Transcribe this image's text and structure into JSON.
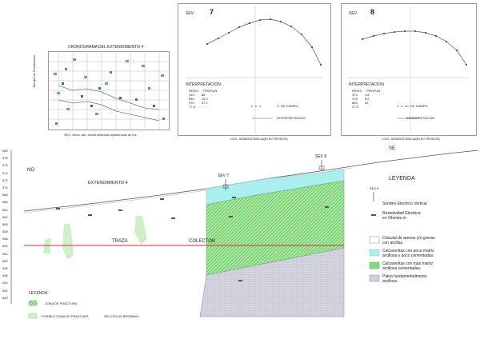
{
  "prospecting_chart": {
    "title": "CRONOGRAMA DEL EXTENDIMIENTO 4",
    "ylabel": "Tiempo de Penetracion",
    "footer": [
      "SEV. 15rev. ato. Inicial estimado apariencias de los"
    ]
  },
  "sev7": {
    "label": "SEV:",
    "number": "7",
    "interpretation_title": "INTERPRETACION",
    "table_header": [
      "RESIS.",
      "PROFUN."
    ],
    "table_rows": [
      [
        "152",
        "80"
      ],
      [
        "984",
        "10.3"
      ],
      [
        "970",
        "47.4"
      ],
      [
        "77.5",
        ""
      ]
    ],
    "legend_points": "C. DE CAMPO",
    "legend_line": "INTERPRETACION",
    "xlabel": "LOG. SEMIDISTANCIA(ELECTRODOS)"
  },
  "sev8": {
    "label": "SEV:",
    "number": "8",
    "interpretation_title": "INTERPRETACION",
    "table_header": [
      "RESIS.",
      "PROFUN."
    ],
    "table_rows": [
      [
        "373",
        "1.8"
      ],
      [
        "376",
        "5.2"
      ],
      [
        "869",
        "40"
      ],
      [
        "27.5",
        ""
      ]
    ],
    "legend_points": "C. DE CAMPO",
    "legend_line": "INTERPRETACION",
    "xlabel": "LOG. SEMIDISTANCIA(ELECTRODOS)"
  },
  "section": {
    "left_label": "NO",
    "right_label": "SE",
    "title": "EXTENDIMIENTO 4",
    "sev7_label": "SEV 7",
    "sev8_label": "SEV 8",
    "traza_label": "TRAZA",
    "colector_label": "COLECTOR",
    "elevation_ticks": [
      "580",
      "578",
      "576",
      "574",
      "572",
      "570",
      "568",
      "566",
      "564",
      "562",
      "560",
      "558",
      "556",
      "554",
      "552",
      "550",
      "548",
      "546",
      "544",
      "542",
      "540"
    ]
  },
  "legend_right": {
    "title": "LEYENDA",
    "sev_symbol": "SEV 6",
    "items": [
      "Sondeo Electrico Vertical",
      "Resistividad Electrica\nen Ohmios.m",
      "Coluvial de arenas y/o gravas\ncon arcillas.",
      "Calcarenitas con poca matriz\narcillosa y poco cementadas.",
      "Calcarenitas con más matriz\narcillosa cementadas.",
      "Paleo fundamentalmente\narcilloso."
    ],
    "colors": [
      "#ffffff",
      "#aaeeee",
      "#7fdc7f",
      "#cfcfdc"
    ]
  },
  "legend_left": {
    "title": "LEYENDA",
    "items": [
      "ZONA DE FRACTURA",
      "POSIBLE ZONA DE FRACTURA"
    ],
    "extra": "SEV   CELOS BEOBINAL"
  },
  "colors": {
    "cyan": "#aaeeee",
    "green": "#7fdc7f",
    "gray": "#cfcfdc",
    "line": "#555555",
    "red": "#d44a4a"
  }
}
